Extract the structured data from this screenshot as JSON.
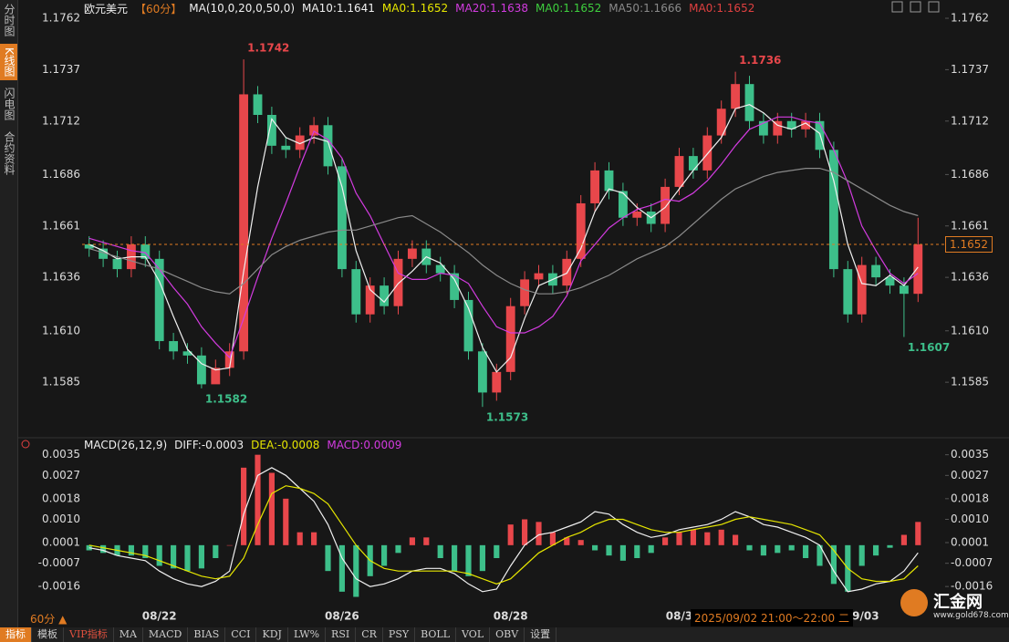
{
  "sidebar": {
    "tabs": [
      "分时图",
      "K线图",
      "闪电图",
      "合约资料"
    ],
    "active": "K线图"
  },
  "toolbar": {
    "period": "60分 ▲",
    "tabs": [
      "指标",
      "模板",
      "VIP指标",
      "MA",
      "MACD",
      "BIAS",
      "CCI",
      "KDJ",
      "LW%",
      "RSI",
      "CR",
      "PSY",
      "BOLL",
      "VOL",
      "OBV",
      "设置"
    ],
    "active": "指标",
    "vip": "VIP指标"
  },
  "tooltip": "2025/09/02 21:00～22:00 二",
  "watermark": {
    "name": "汇金网",
    "url": "www.gold678.com"
  },
  "chart_data": [
    {
      "type": "candlestick",
      "title": "欧元美元",
      "period": "【60分】",
      "params": "MA(10,0,20,0,50,0)",
      "up_color": "#e8474b",
      "down_color": "#3dbf8a",
      "price_line_color": "#e07b22",
      "last_price": 1.1652,
      "ylim": [
        1.1562,
        1.1766
      ],
      "yticks": [
        1.1762,
        1.1737,
        1.1712,
        1.1686,
        1.1661,
        1.1636,
        {
          "value": 1.161,
          "label": "1.1610"
        },
        1.1585
      ],
      "categories": [
        null,
        null,
        null,
        null,
        null,
        "08/22",
        null,
        null,
        null,
        null,
        null,
        null,
        null,
        null,
        null,
        null,
        null,
        null,
        "08/26",
        null,
        null,
        null,
        null,
        null,
        null,
        null,
        null,
        null,
        null,
        null,
        "08/28",
        null,
        null,
        null,
        null,
        null,
        null,
        null,
        null,
        null,
        null,
        null,
        "08/3",
        null,
        null,
        null,
        null,
        null,
        null,
        null,
        null,
        null,
        null,
        null,
        null,
        "09/03",
        null,
        null,
        null,
        null
      ],
      "open": [
        1.1652,
        1.165,
        1.1645,
        1.164,
        1.1652,
        1.1645,
        1.1605,
        1.16,
        1.1598,
        1.1584,
        1.1592,
        1.16,
        1.1725,
        1.1715,
        1.17,
        1.1698,
        1.1705,
        1.171,
        1.169,
        1.164,
        1.1618,
        1.1632,
        1.1622,
        1.1645,
        1.165,
        1.1642,
        1.1638,
        1.1625,
        1.16,
        1.158,
        1.159,
        1.1622,
        1.1635,
        1.1638,
        1.1632,
        1.1645,
        1.1672,
        1.1688,
        1.1678,
        1.1665,
        1.1668,
        1.1662,
        1.168,
        1.1695,
        1.1688,
        1.1705,
        1.1718,
        1.173,
        1.1712,
        1.1705,
        1.1712,
        1.1708,
        1.1712,
        1.1698,
        1.164,
        1.1618,
        1.1642,
        1.1636,
        1.1632,
        1.1628
      ],
      "high": [
        1.1656,
        1.1654,
        1.1649,
        1.1656,
        1.1656,
        1.1649,
        1.1609,
        1.1604,
        1.1602,
        1.1596,
        1.1604,
        1.1742,
        1.1729,
        1.1719,
        1.1704,
        1.1709,
        1.1714,
        1.1714,
        1.1694,
        1.1644,
        1.1636,
        1.1636,
        1.1649,
        1.1654,
        1.1654,
        1.1646,
        1.1642,
        1.1629,
        1.1604,
        1.1594,
        1.1626,
        1.1639,
        1.1642,
        1.1642,
        1.1649,
        1.1676,
        1.1692,
        1.1692,
        1.1682,
        1.1672,
        1.1672,
        1.1684,
        1.1699,
        1.1699,
        1.1709,
        1.1722,
        1.1736,
        1.1734,
        1.1716,
        1.1716,
        1.1716,
        1.1716,
        1.1716,
        1.1702,
        1.1644,
        1.1646,
        1.1646,
        1.164,
        1.1636,
        1.1665
      ],
      "low": [
        1.1646,
        1.1641,
        1.1636,
        1.1636,
        1.1641,
        1.1601,
        1.1596,
        1.1594,
        1.1582,
        1.1586,
        1.1588,
        1.1596,
        1.1711,
        1.1696,
        1.1694,
        1.1694,
        1.1701,
        1.1686,
        1.1636,
        1.1614,
        1.1614,
        1.1618,
        1.1618,
        1.1641,
        1.1638,
        1.1634,
        1.1621,
        1.1596,
        1.1573,
        1.1576,
        1.1586,
        1.1618,
        1.1631,
        1.1628,
        1.1628,
        1.1641,
        1.1668,
        1.1674,
        1.1661,
        1.1661,
        1.1658,
        1.1658,
        1.1676,
        1.1684,
        1.1684,
        1.1701,
        1.1714,
        1.1708,
        1.1701,
        1.1701,
        1.1704,
        1.1704,
        1.1694,
        1.1636,
        1.1614,
        1.1614,
        1.1632,
        1.1628,
        1.1607,
        1.1624
      ],
      "close": [
        1.165,
        1.1645,
        1.164,
        1.1652,
        1.1645,
        1.1605,
        1.16,
        1.1598,
        1.1584,
        1.1592,
        1.16,
        1.1725,
        1.1715,
        1.17,
        1.1698,
        1.1705,
        1.171,
        1.169,
        1.164,
        1.1618,
        1.1632,
        1.1622,
        1.1645,
        1.165,
        1.1642,
        1.1638,
        1.1625,
        1.16,
        1.158,
        1.159,
        1.1622,
        1.1635,
        1.1638,
        1.1632,
        1.1645,
        1.1672,
        1.1688,
        1.1678,
        1.1665,
        1.1668,
        1.1662,
        1.168,
        1.1695,
        1.1688,
        1.1705,
        1.1718,
        1.173,
        1.1712,
        1.1705,
        1.1712,
        1.1708,
        1.1712,
        1.1698,
        1.164,
        1.1618,
        1.1642,
        1.1636,
        1.1632,
        1.1628,
        1.1652
      ],
      "annotations": [
        1.1742,
        1.1582,
        1.1573,
        1.1736,
        1.1607
      ],
      "series": [
        {
          "name": "MA10:1.1641",
          "color": "#f0f0f0",
          "ma0": {
            "text": "MA0:1.1652",
            "color": "#e6e600"
          },
          "values": [
            1.1652,
            1.1649,
            1.1645,
            1.1646,
            1.1646,
            1.1634,
            1.1617,
            1.1601,
            1.1594,
            1.1591,
            1.1592,
            1.1639,
            1.168,
            1.1713,
            1.1704,
            1.1701,
            1.1704,
            1.1702,
            1.168,
            1.1649,
            1.163,
            1.1624,
            1.1633,
            1.1639,
            1.1646,
            1.1643,
            1.1635,
            1.1621,
            1.1602,
            1.159,
            1.1597,
            1.1616,
            1.1632,
            1.1635,
            1.1638,
            1.165,
            1.1668,
            1.1679,
            1.1677,
            1.167,
            1.1665,
            1.167,
            1.1679,
            1.1688,
            1.1696,
            1.1704,
            1.1718,
            1.172,
            1.1716,
            1.171,
            1.1708,
            1.1711,
            1.1706,
            1.1683,
            1.1652,
            1.1633,
            1.1632,
            1.1637,
            1.1632,
            1.1641
          ]
        },
        {
          "name": "MA20:1.1638",
          "color": "#d33be0",
          "ma0": {
            "text": "MA0:1.1652",
            "color": "#3ecf3e"
          },
          "values": [
            1.1655,
            1.1653,
            1.1651,
            1.1649,
            1.1648,
            1.164,
            1.1631,
            1.1623,
            1.1612,
            1.1604,
            1.1597,
            1.1616,
            1.1636,
            1.1655,
            1.1672,
            1.169,
            1.1707,
            1.1703,
            1.1694,
            1.1677,
            1.1666,
            1.1652,
            1.1638,
            1.1635,
            1.1635,
            1.1638,
            1.1637,
            1.1633,
            1.1622,
            1.1612,
            1.1609,
            1.1609,
            1.1612,
            1.1617,
            1.1627,
            1.1644,
            1.1652,
            1.166,
            1.1665,
            1.1669,
            1.1671,
            1.1674,
            1.1673,
            1.1677,
            1.1683,
            1.1691,
            1.17,
            1.1708,
            1.1711,
            1.1714,
            1.1714,
            1.1712,
            1.1711,
            1.1698,
            1.1682,
            1.1661,
            1.1649,
            1.1638,
            1.1633,
            1.1638
          ]
        },
        {
          "name": "MA50:1.1666",
          "color": "#8a8a8a",
          "ma0": {
            "text": "MA0:1.1652",
            "color": "#e04040"
          },
          "values": [
            1.165,
            1.1648,
            1.1646,
            1.1644,
            1.1642,
            1.164,
            1.1637,
            1.1634,
            1.1631,
            1.1629,
            1.1628,
            1.1633,
            1.164,
            1.1647,
            1.1651,
            1.1654,
            1.1656,
            1.1658,
            1.1659,
            1.1659,
            1.1661,
            1.1663,
            1.1665,
            1.1666,
            1.1662,
            1.1658,
            1.1653,
            1.1648,
            1.1642,
            1.1637,
            1.1633,
            1.163,
            1.1628,
            1.1628,
            1.1629,
            1.1631,
            1.1634,
            1.1637,
            1.1641,
            1.1645,
            1.1648,
            1.1651,
            1.1656,
            1.1662,
            1.1668,
            1.1674,
            1.1679,
            1.1682,
            1.1685,
            1.1687,
            1.1688,
            1.1689,
            1.1689,
            1.1687,
            1.1683,
            1.1679,
            1.1675,
            1.1671,
            1.1668,
            1.1666
          ]
        }
      ]
    },
    {
      "type": "macd",
      "title": "MACD(26,12,9)",
      "ylim": [
        -0.0023,
        0.0037
      ],
      "yticks": [
        0.0035,
        0.0027,
        0.0018,
        {
          "value": 0.001,
          "label": "0.0010"
        },
        0.0001,
        -0.0007,
        -0.0016
      ],
      "histogram": {
        "name": "MACD:0.0009",
        "legend_color": "#d33be0",
        "up_color": "#e8474b",
        "down_color": "#3dbf8a",
        "values": [
          -0.0002,
          -0.0003,
          -0.0004,
          -0.0004,
          -0.0005,
          -0.0008,
          -0.0009,
          -0.001,
          -0.0009,
          -0.0005,
          0.0,
          0.003,
          0.0035,
          0.0028,
          0.0018,
          0.0005,
          0.0005,
          -0.001,
          -0.0018,
          -0.002,
          -0.0012,
          -0.0008,
          -0.0003,
          0.0003,
          0.0003,
          -0.0005,
          -0.001,
          -0.0012,
          -0.001,
          -0.0005,
          0.0008,
          0.001,
          0.0009,
          0.0005,
          0.0003,
          0.0002,
          -0.0002,
          -0.0004,
          -0.0006,
          -0.0005,
          -0.0003,
          0.0003,
          0.0005,
          0.0006,
          0.0005,
          0.0006,
          0.0004,
          -0.0002,
          -0.0004,
          -0.0003,
          -0.0002,
          -0.0005,
          -0.0008,
          -0.0015,
          -0.0018,
          -0.0008,
          -0.0004,
          -0.0001,
          0.0004,
          0.0009
        ]
      },
      "series": [
        {
          "name": "DIFF:-0.0003",
          "color": "#f0f0f0",
          "values": [
            -0.0001,
            -0.0002,
            -0.0004,
            -0.0005,
            -0.0006,
            -0.001,
            -0.0013,
            -0.0015,
            -0.0016,
            -0.0014,
            -0.001,
            0.0012,
            0.0027,
            0.003,
            0.0027,
            0.0022,
            0.0017,
            0.0008,
            -0.0005,
            -0.0013,
            -0.0016,
            -0.0015,
            -0.0013,
            -0.001,
            -0.0009,
            -0.0009,
            -0.0011,
            -0.0015,
            -0.0018,
            -0.0017,
            -0.0008,
            0.0,
            0.0004,
            0.0005,
            0.0007,
            0.0009,
            0.0013,
            0.0012,
            0.0008,
            0.0005,
            0.0003,
            0.0004,
            0.0006,
            0.0007,
            0.0008,
            0.001,
            0.0013,
            0.0011,
            0.0008,
            0.0007,
            0.0005,
            0.0003,
            0.0,
            -0.001,
            -0.0018,
            -0.0017,
            -0.0015,
            -0.0014,
            -0.001,
            -0.0003
          ]
        },
        {
          "name": "DEA:-0.0008",
          "color": "#e6e600",
          "values": [
            0.0,
            -0.0001,
            -0.0002,
            -0.0003,
            -0.0004,
            -0.0006,
            -0.0008,
            -0.001,
            -0.0012,
            -0.0013,
            -0.0012,
            -0.0005,
            0.0008,
            0.002,
            0.0023,
            0.0022,
            0.002,
            0.0016,
            0.0008,
            0.0,
            -0.0006,
            -0.0009,
            -0.001,
            -0.001,
            -0.001,
            -0.001,
            -0.001,
            -0.0011,
            -0.0013,
            -0.0015,
            -0.0013,
            -0.0008,
            -0.0003,
            0.0,
            0.0003,
            0.0005,
            0.0008,
            0.001,
            0.001,
            0.0008,
            0.0006,
            0.0005,
            0.0005,
            0.0006,
            0.0007,
            0.0008,
            0.001,
            0.0011,
            0.001,
            0.0009,
            0.0008,
            0.0006,
            0.0004,
            -0.0002,
            -0.0009,
            -0.0013,
            -0.0014,
            -0.0014,
            -0.0013,
            -0.0008
          ]
        }
      ]
    }
  ]
}
